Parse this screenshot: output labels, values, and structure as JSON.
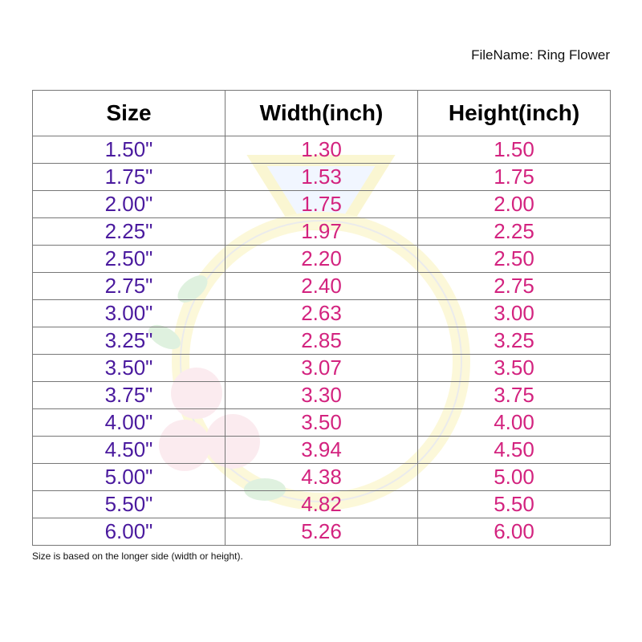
{
  "file_name": "FileName: Ring Flower",
  "headers": [
    "Size",
    "Width(inch)",
    "Height(inch)"
  ],
  "rows": [
    [
      "1.50\"",
      "1.30",
      "1.50"
    ],
    [
      "1.75\"",
      "1.53",
      "1.75"
    ],
    [
      "2.00\"",
      "1.75",
      "2.00"
    ],
    [
      "2.25\"",
      "1.97",
      "2.25"
    ],
    [
      "2.50\"",
      "2.20",
      "2.50"
    ],
    [
      "2.75\"",
      "2.40",
      "2.75"
    ],
    [
      "3.00\"",
      "2.63",
      "3.00"
    ],
    [
      "3.25\"",
      "2.85",
      "3.25"
    ],
    [
      "3.50\"",
      "3.07",
      "3.50"
    ],
    [
      "3.75\"",
      "3.30",
      "3.75"
    ],
    [
      "4.00\"",
      "3.50",
      "4.00"
    ],
    [
      "4.50\"",
      "3.94",
      "4.50"
    ],
    [
      "5.00\"",
      "4.38",
      "5.00"
    ],
    [
      "5.50\"",
      "4.82",
      "5.50"
    ],
    [
      "6.00\"",
      "5.26",
      "6.00"
    ]
  ],
  "note": "Size is based on the longer side (width or height).",
  "colors": {
    "size_text": "#4a1a9e",
    "value_text": "#d3237f"
  },
  "watermark": "ring-with-diamond-and-roses"
}
